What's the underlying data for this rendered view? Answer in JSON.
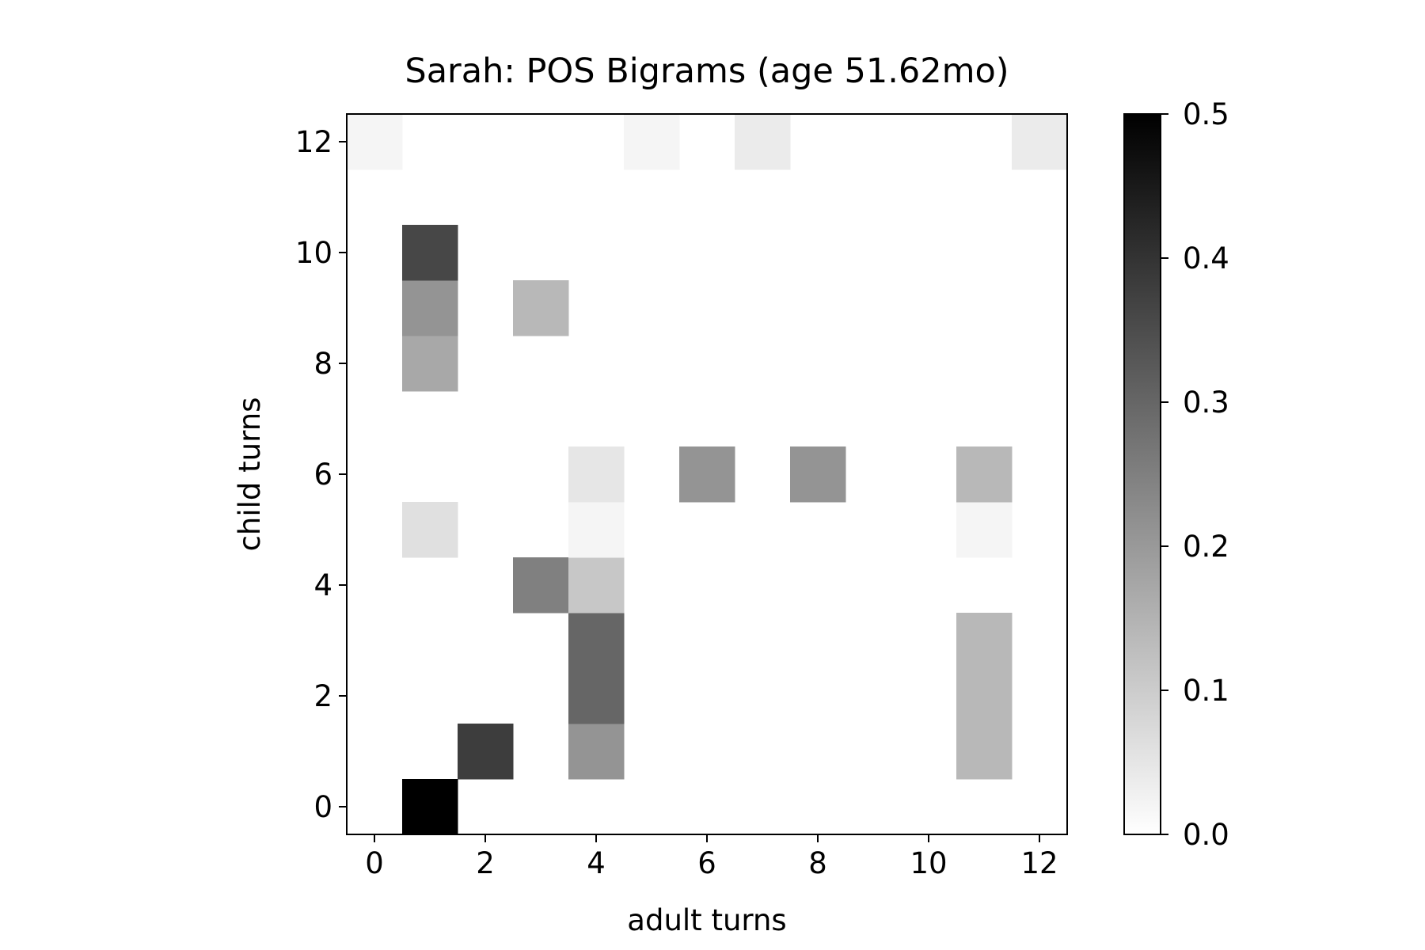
{
  "chart_data": {
    "type": "heatmap",
    "title": "Sarah: POS Bigrams (age 51.62mo)",
    "xlabel": "adult turns",
    "ylabel": "child turns",
    "x_ticks": [
      0,
      2,
      4,
      6,
      8,
      10,
      12
    ],
    "y_ticks": [
      0,
      2,
      4,
      6,
      8,
      10,
      12
    ],
    "xlim": [
      -0.5,
      12.5
    ],
    "ylim": [
      -0.5,
      12.5
    ],
    "colormap": "gray_r",
    "color_range": [
      0.0,
      0.5
    ],
    "colorbar_ticks": [
      "0.0",
      "0.1",
      "0.2",
      "0.3",
      "0.4",
      "0.5"
    ],
    "colorbar_tick_values": [
      0.0,
      0.1,
      0.2,
      0.3,
      0.4,
      0.5
    ],
    "cells": [
      {
        "x": 1,
        "y": 0,
        "value": 0.5
      },
      {
        "x": 2,
        "y": 1,
        "value": 0.38
      },
      {
        "x": 4,
        "y": 1,
        "value": 0.21
      },
      {
        "x": 11,
        "y": 1,
        "value": 0.14
      },
      {
        "x": 4,
        "y": 2,
        "value": 0.3
      },
      {
        "x": 11,
        "y": 2,
        "value": 0.14
      },
      {
        "x": 4,
        "y": 3,
        "value": 0.3
      },
      {
        "x": 11,
        "y": 3,
        "value": 0.14
      },
      {
        "x": 3,
        "y": 4,
        "value": 0.25
      },
      {
        "x": 4,
        "y": 4,
        "value": 0.11
      },
      {
        "x": 1,
        "y": 5,
        "value": 0.06
      },
      {
        "x": 4,
        "y": 5,
        "value": 0.02
      },
      {
        "x": 11,
        "y": 5,
        "value": 0.02
      },
      {
        "x": 4,
        "y": 6,
        "value": 0.05
      },
      {
        "x": 6,
        "y": 6,
        "value": 0.21
      },
      {
        "x": 8,
        "y": 6,
        "value": 0.21
      },
      {
        "x": 11,
        "y": 6,
        "value": 0.14
      },
      {
        "x": 1,
        "y": 8,
        "value": 0.17
      },
      {
        "x": 1,
        "y": 9,
        "value": 0.21
      },
      {
        "x": 3,
        "y": 9,
        "value": 0.14
      },
      {
        "x": 1,
        "y": 10,
        "value": 0.36
      },
      {
        "x": 0,
        "y": 12,
        "value": 0.02
      },
      {
        "x": 5,
        "y": 12,
        "value": 0.02
      },
      {
        "x": 7,
        "y": 12,
        "value": 0.04
      },
      {
        "x": 12,
        "y": 12,
        "value": 0.04
      }
    ]
  }
}
